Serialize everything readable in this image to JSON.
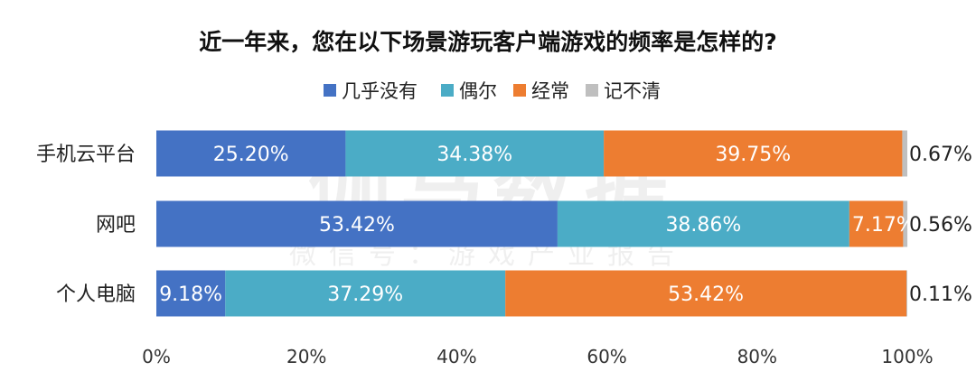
{
  "chart_data": {
    "type": "bar",
    "orientation": "horizontal",
    "stacked": true,
    "title": "近一年来，您在以下场景游玩客户端游戏的频率是怎样的?",
    "categories": [
      "手机云平台",
      "网吧",
      "个人电脑"
    ],
    "series": [
      {
        "name": "几乎没有",
        "color": "#4472C4",
        "values": [
          25.2,
          53.42,
          9.18
        ],
        "labels": [
          "25.20%",
          "53.42%",
          "9.18%"
        ]
      },
      {
        "name": "偶尔",
        "color": "#4BACC6",
        "values": [
          34.38,
          38.86,
          37.29
        ],
        "labels": [
          "34.38%",
          "38.86%",
          "37.29%"
        ]
      },
      {
        "name": "经常",
        "color": "#ED7D31",
        "values": [
          39.75,
          7.17,
          53.42
        ],
        "labels": [
          "39.75%",
          "7.17%",
          "53.42%"
        ]
      },
      {
        "name": "记不清",
        "color": "#BFBFBF",
        "values": [
          0.67,
          0.56,
          0.11
        ],
        "labels": [
          "0.67%",
          "0.56%",
          "0.11%"
        ]
      }
    ],
    "xlim": [
      0,
      100
    ],
    "xticks": [
      "0%",
      "20%",
      "40%",
      "60%",
      "80%",
      "100%"
    ],
    "legend_position": "top",
    "grid": false
  },
  "watermark": {
    "main": "伽马数据",
    "sub": "微信号：游戏产业报告"
  }
}
